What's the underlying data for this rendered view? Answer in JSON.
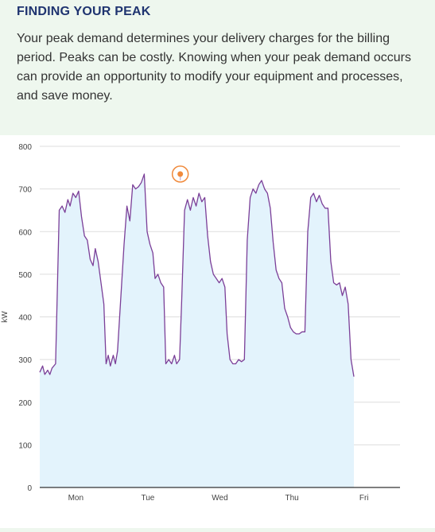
{
  "header": {
    "title": "FINDING YOUR PEAK",
    "paragraph": "Your peak demand determines your delivery charges for the billing period. Peaks can be costly. Knowing when your peak demand occurs can provide an opportunity to modify your equipment and processes, and save money."
  },
  "colors": {
    "line": "#7b3f98",
    "fill": "#e3f3fc",
    "grid": "#dddddd",
    "axis": "#333333",
    "peak_marker": "#f08a3c",
    "heading": "#1f3470"
  },
  "chart_data": {
    "type": "area",
    "title": "",
    "xlabel": "",
    "ylabel": "kW",
    "ylim": [
      0,
      800
    ],
    "yticks": [
      0,
      100,
      200,
      300,
      400,
      500,
      600,
      700,
      800
    ],
    "xlim": [
      0,
      5
    ],
    "categories": [
      "Mon",
      "Tue",
      "Wed",
      "Thu",
      "Fri"
    ],
    "grid": true,
    "peak_marker": {
      "x": 1.95,
      "y": 735
    },
    "series": [
      {
        "values": [
          [
            0.0,
            270
          ],
          [
            0.04,
            285
          ],
          [
            0.07,
            265
          ],
          [
            0.11,
            275
          ],
          [
            0.14,
            265
          ],
          [
            0.17,
            280
          ],
          [
            0.22,
            290
          ],
          [
            0.27,
            650
          ],
          [
            0.31,
            660
          ],
          [
            0.35,
            645
          ],
          [
            0.39,
            675
          ],
          [
            0.42,
            660
          ],
          [
            0.46,
            690
          ],
          [
            0.5,
            680
          ],
          [
            0.54,
            695
          ],
          [
            0.58,
            635
          ],
          [
            0.62,
            590
          ],
          [
            0.66,
            580
          ],
          [
            0.7,
            535
          ],
          [
            0.74,
            520
          ],
          [
            0.77,
            560
          ],
          [
            0.81,
            530
          ],
          [
            0.85,
            480
          ],
          [
            0.89,
            430
          ],
          [
            0.92,
            290
          ],
          [
            0.95,
            310
          ],
          [
            0.98,
            285
          ],
          [
            1.02,
            310
          ],
          [
            1.05,
            290
          ],
          [
            1.08,
            320
          ],
          [
            1.13,
            460
          ],
          [
            1.17,
            570
          ],
          [
            1.21,
            660
          ],
          [
            1.25,
            625
          ],
          [
            1.29,
            710
          ],
          [
            1.33,
            700
          ],
          [
            1.37,
            705
          ],
          [
            1.41,
            715
          ],
          [
            1.45,
            735
          ],
          [
            1.49,
            600
          ],
          [
            1.53,
            570
          ],
          [
            1.57,
            550
          ],
          [
            1.6,
            490
          ],
          [
            1.64,
            500
          ],
          [
            1.68,
            480
          ],
          [
            1.72,
            470
          ],
          [
            1.75,
            290
          ],
          [
            1.79,
            300
          ],
          [
            1.83,
            290
          ],
          [
            1.87,
            310
          ],
          [
            1.9,
            290
          ],
          [
            1.94,
            300
          ],
          [
            1.97,
            440
          ],
          [
            2.01,
            650
          ],
          [
            2.05,
            675
          ],
          [
            2.09,
            650
          ],
          [
            2.13,
            680
          ],
          [
            2.17,
            660
          ],
          [
            2.21,
            690
          ],
          [
            2.25,
            670
          ],
          [
            2.29,
            680
          ],
          [
            2.33,
            590
          ],
          [
            2.37,
            530
          ],
          [
            2.41,
            500
          ],
          [
            2.45,
            490
          ],
          [
            2.49,
            480
          ],
          [
            2.53,
            490
          ],
          [
            2.57,
            470
          ],
          [
            2.6,
            360
          ],
          [
            2.64,
            300
          ],
          [
            2.68,
            290
          ],
          [
            2.72,
            290
          ],
          [
            2.76,
            300
          ],
          [
            2.8,
            295
          ],
          [
            2.84,
            300
          ],
          [
            2.88,
            580
          ],
          [
            2.92,
            680
          ],
          [
            2.96,
            700
          ],
          [
            3.0,
            690
          ],
          [
            3.04,
            710
          ],
          [
            3.08,
            720
          ],
          [
            3.12,
            700
          ],
          [
            3.16,
            690
          ],
          [
            3.2,
            655
          ],
          [
            3.24,
            575
          ],
          [
            3.28,
            510
          ],
          [
            3.32,
            490
          ],
          [
            3.36,
            480
          ],
          [
            3.4,
            420
          ],
          [
            3.44,
            400
          ],
          [
            3.48,
            375
          ],
          [
            3.52,
            365
          ],
          [
            3.56,
            360
          ],
          [
            3.6,
            360
          ],
          [
            3.64,
            365
          ],
          [
            3.68,
            365
          ],
          [
            3.72,
            600
          ],
          [
            3.76,
            680
          ],
          [
            3.8,
            690
          ],
          [
            3.84,
            670
          ],
          [
            3.88,
            685
          ],
          [
            3.92,
            665
          ],
          [
            3.96,
            655
          ],
          [
            4.0,
            655
          ],
          [
            4.04,
            530
          ],
          [
            4.08,
            480
          ],
          [
            4.12,
            475
          ],
          [
            4.16,
            480
          ],
          [
            4.2,
            450
          ],
          [
            4.24,
            470
          ],
          [
            4.28,
            430
          ],
          [
            4.32,
            300
          ],
          [
            4.36,
            260
          ]
        ]
      }
    ]
  }
}
